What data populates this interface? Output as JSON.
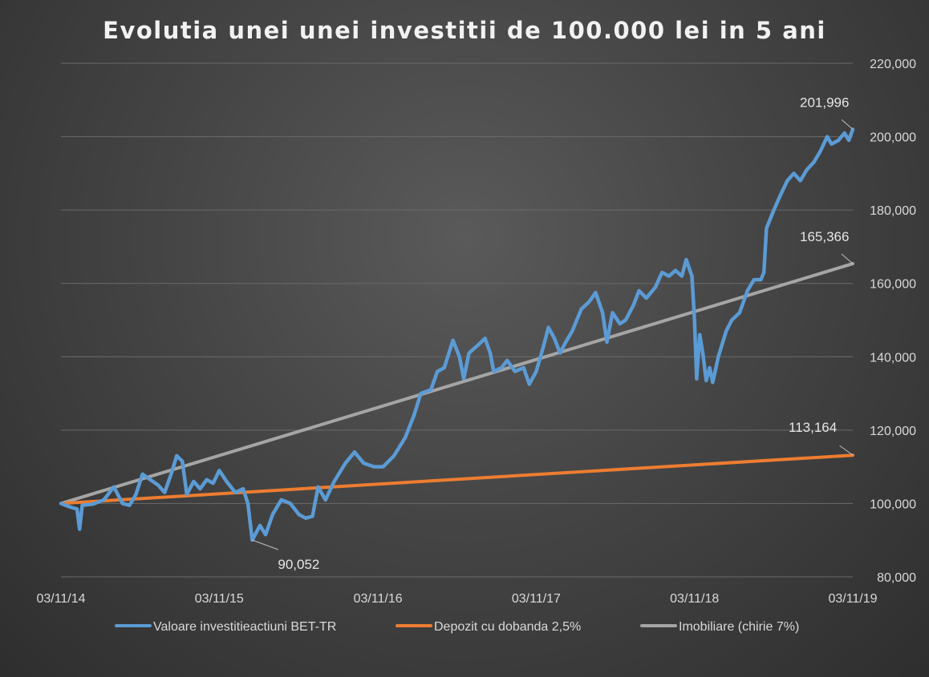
{
  "chart_data": {
    "type": "line",
    "title": "Evolutia unei unei investitii de 100.000 lei in 5 ani",
    "y_axis": {
      "position": "right",
      "ylim": [
        80000,
        220000
      ],
      "ticks": [
        80000,
        100000,
        120000,
        140000,
        160000,
        180000,
        200000,
        220000
      ],
      "tick_labels": [
        "80,000",
        "100,000",
        "120,000",
        "140,000",
        "160,000",
        "180,000",
        "200,000",
        "220,000"
      ]
    },
    "x_axis": {
      "xlim": [
        "2014-11-03",
        "2019-11-03"
      ],
      "tick_dates": [
        "2014-11-03",
        "2015-11-03",
        "2016-11-03",
        "2017-11-03",
        "2018-11-03",
        "2019-11-03"
      ],
      "tick_labels": [
        "03/11/14",
        "03/11/15",
        "03/11/16",
        "03/11/17",
        "03/11/18",
        "03/11/19"
      ]
    },
    "grid": true,
    "legend_position": "bottom",
    "series": [
      {
        "name": "Valoare investitieactiuni BET-TR",
        "color": "#5b9bd5",
        "points": [
          [
            "2014-11-03",
            100000
          ],
          [
            "2014-11-25",
            99000
          ],
          [
            "2014-12-10",
            98500
          ],
          [
            "2014-12-16",
            93000
          ],
          [
            "2014-12-22",
            99500
          ],
          [
            "2015-01-15",
            99800
          ],
          [
            "2015-02-10",
            101000
          ],
          [
            "2015-03-05",
            104500
          ],
          [
            "2015-03-25",
            100000
          ],
          [
            "2015-04-10",
            99500
          ],
          [
            "2015-04-25",
            102500
          ],
          [
            "2015-05-10",
            108000
          ],
          [
            "2015-05-28",
            106500
          ],
          [
            "2015-06-15",
            105000
          ],
          [
            "2015-06-30",
            103000
          ],
          [
            "2015-07-15",
            108000
          ],
          [
            "2015-07-28",
            113000
          ],
          [
            "2015-08-10",
            111500
          ],
          [
            "2015-08-20",
            102500
          ],
          [
            "2015-09-05",
            106000
          ],
          [
            "2015-09-20",
            104000
          ],
          [
            "2015-10-05",
            106500
          ],
          [
            "2015-10-20",
            105500
          ],
          [
            "2015-11-03",
            109000
          ],
          [
            "2015-11-20",
            106000
          ],
          [
            "2015-12-10",
            103000
          ],
          [
            "2015-12-28",
            104000
          ],
          [
            "2016-01-08",
            100000
          ],
          [
            "2016-01-18",
            90052
          ],
          [
            "2016-02-05",
            94000
          ],
          [
            "2016-02-18",
            91500
          ],
          [
            "2016-03-05",
            97000
          ],
          [
            "2016-03-25",
            101000
          ],
          [
            "2016-04-15",
            100000
          ],
          [
            "2016-05-05",
            97000
          ],
          [
            "2016-05-20",
            96000
          ],
          [
            "2016-06-05",
            96500
          ],
          [
            "2016-06-18",
            104500
          ],
          [
            "2016-07-05",
            101000
          ],
          [
            "2016-07-25",
            106000
          ],
          [
            "2016-08-20",
            111000
          ],
          [
            "2016-09-10",
            114000
          ],
          [
            "2016-10-01",
            111000
          ],
          [
            "2016-10-25",
            110000
          ],
          [
            "2016-11-15",
            110000
          ],
          [
            "2016-12-10",
            113000
          ],
          [
            "2017-01-05",
            118000
          ],
          [
            "2017-01-25",
            124000
          ],
          [
            "2017-02-10",
            130000
          ],
          [
            "2017-03-05",
            131000
          ],
          [
            "2017-03-20",
            136000
          ],
          [
            "2017-04-05",
            137000
          ],
          [
            "2017-04-25",
            144500
          ],
          [
            "2017-05-10",
            140000
          ],
          [
            "2017-05-20",
            134000
          ],
          [
            "2017-06-01",
            141000
          ],
          [
            "2017-06-20",
            143000
          ],
          [
            "2017-07-08",
            145000
          ],
          [
            "2017-07-20",
            141000
          ],
          [
            "2017-07-28",
            136000
          ],
          [
            "2017-08-15",
            137000
          ],
          [
            "2017-08-28",
            139000
          ],
          [
            "2017-09-15",
            136000
          ],
          [
            "2017-10-05",
            137000
          ],
          [
            "2017-10-18",
            132500
          ],
          [
            "2017-11-03",
            136000
          ],
          [
            "2017-11-20",
            143000
          ],
          [
            "2017-12-01",
            148000
          ],
          [
            "2017-12-15",
            145000
          ],
          [
            "2017-12-28",
            141000
          ],
          [
            "2018-01-10",
            144000
          ],
          [
            "2018-01-25",
            147000
          ],
          [
            "2018-02-15",
            153000
          ],
          [
            "2018-03-05",
            155000
          ],
          [
            "2018-03-20",
            157500
          ],
          [
            "2018-04-05",
            152000
          ],
          [
            "2018-04-15",
            144000
          ],
          [
            "2018-04-28",
            152000
          ],
          [
            "2018-05-15",
            149000
          ],
          [
            "2018-05-28",
            150000
          ],
          [
            "2018-06-15",
            154000
          ],
          [
            "2018-06-28",
            158000
          ],
          [
            "2018-07-15",
            156000
          ],
          [
            "2018-08-05",
            159000
          ],
          [
            "2018-08-20",
            163000
          ],
          [
            "2018-09-05",
            162000
          ],
          [
            "2018-09-20",
            163500
          ],
          [
            "2018-10-05",
            162000
          ],
          [
            "2018-10-15",
            166500
          ],
          [
            "2018-10-28",
            162000
          ],
          [
            "2018-11-03",
            150000
          ],
          [
            "2018-11-08",
            134000
          ],
          [
            "2018-11-15",
            146000
          ],
          [
            "2018-11-22",
            141000
          ],
          [
            "2018-11-30",
            133500
          ],
          [
            "2018-12-08",
            137000
          ],
          [
            "2018-12-15",
            133000
          ],
          [
            "2018-12-28",
            140000
          ],
          [
            "2019-01-15",
            147000
          ],
          [
            "2019-01-28",
            150000
          ],
          [
            "2019-02-15",
            152000
          ],
          [
            "2019-03-05",
            158000
          ],
          [
            "2019-03-20",
            161000
          ],
          [
            "2019-04-05",
            161000
          ],
          [
            "2019-04-12",
            163000
          ],
          [
            "2019-04-18",
            175000
          ],
          [
            "2019-05-05",
            180000
          ],
          [
            "2019-05-20",
            184000
          ],
          [
            "2019-06-05",
            188000
          ],
          [
            "2019-06-20",
            190000
          ],
          [
            "2019-07-05",
            188000
          ],
          [
            "2019-07-20",
            191000
          ],
          [
            "2019-08-05",
            193000
          ],
          [
            "2019-08-20",
            196000
          ],
          [
            "2019-09-05",
            200000
          ],
          [
            "2019-09-15",
            198000
          ],
          [
            "2019-10-01",
            199000
          ],
          [
            "2019-10-15",
            201000
          ],
          [
            "2019-10-25",
            199000
          ],
          [
            "2019-11-03",
            201996
          ]
        ]
      },
      {
        "name": "Depozit cu dobanda 2,5%",
        "color": "#ed7d31",
        "points": [
          [
            "2014-11-03",
            100000
          ],
          [
            "2019-11-03",
            113164
          ]
        ]
      },
      {
        "name": "Imobiliare (chirie 7%)",
        "color": "#a5a5a5",
        "points": [
          [
            "2014-11-03",
            100000
          ],
          [
            "2019-11-03",
            165366
          ]
        ]
      }
    ],
    "annotations": [
      {
        "text": "201,996",
        "series": 0,
        "date": "2019-11-03",
        "value": 201996
      },
      {
        "text": "165,366",
        "series": 2,
        "date": "2019-11-03",
        "value": 165366
      },
      {
        "text": "113,164",
        "series": 1,
        "date": "2019-11-03",
        "value": 113164
      },
      {
        "text": "90,052",
        "series": 0,
        "date": "2016-01-18",
        "value": 90052
      }
    ]
  }
}
